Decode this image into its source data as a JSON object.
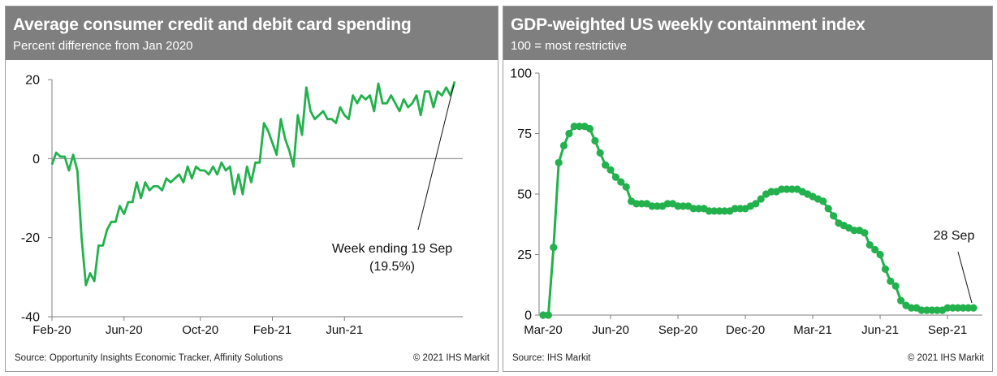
{
  "chart_data": [
    {
      "type": "line",
      "title": "Average consumer credit and debit card spending",
      "subtitle": "Percent difference from Jan 2020",
      "xlabel": "",
      "ylabel": "",
      "ylim": [
        -40,
        20
      ],
      "y_ticks": [
        "20",
        "0",
        "-20",
        "-40"
      ],
      "x_tick_labels": [
        "Feb-20",
        "Jun-20",
        "Oct-20",
        "Feb-21",
        "Jun-21"
      ],
      "x_tick_index": [
        0,
        17,
        35,
        52,
        69
      ],
      "grid": false,
      "series": [
        {
          "name": "Card spending",
          "color": "#22b14c",
          "values": [
            -1.5,
            1.5,
            0.5,
            0.5,
            -3,
            1,
            -3,
            -20,
            -32,
            -29,
            -31,
            -22,
            -22,
            -18,
            -16,
            -16,
            -12,
            -14,
            -11,
            -11,
            -6,
            -10,
            -6,
            -8,
            -7,
            -7,
            -8,
            -5,
            -6,
            -5,
            -4,
            -6,
            -2,
            -5,
            -2,
            -3,
            -3,
            -4,
            -2,
            -4,
            -1,
            -3,
            -2,
            -9,
            -4,
            -9,
            -2,
            -6,
            -1,
            -1,
            9,
            7,
            4,
            1,
            10,
            5,
            2,
            -2,
            11,
            6,
            18,
            12,
            10,
            11,
            12,
            10,
            10,
            9,
            13,
            11,
            10,
            16,
            14,
            16,
            15,
            16,
            12,
            19,
            14,
            14,
            16,
            14,
            12,
            15,
            13,
            14,
            16,
            11,
            17,
            17,
            13,
            17,
            16,
            18,
            16,
            19.5
          ]
        }
      ],
      "annotation": {
        "line1": "Week ending 19 Sep",
        "line2": "(19.5%)"
      },
      "source": "Source: Opportunity Insights Economic Tracker, Affinity Solutions",
      "copyright": "© 2021 IHS Markit"
    },
    {
      "type": "line",
      "title": "GDP-weighted US weekly containment index",
      "subtitle": "100 = most restrictive",
      "xlabel": "",
      "ylabel": "",
      "ylim": [
        0,
        100
      ],
      "y_ticks": [
        "100",
        "75",
        "50",
        "25",
        "0"
      ],
      "x_tick_labels": [
        "Mar-20",
        "Jun-20",
        "Sep-20",
        "Dec-20",
        "Mar-21",
        "Jun-21",
        "Sep-21"
      ],
      "x_tick_index": [
        0,
        13,
        26,
        39,
        52,
        65,
        78
      ],
      "grid": false,
      "series": [
        {
          "name": "Containment index",
          "color": "#22b14c",
          "values": [
            0,
            0,
            28,
            63,
            70,
            75,
            78,
            78,
            78,
            77,
            72,
            67,
            62,
            60,
            57,
            55,
            53,
            47,
            46,
            46,
            46,
            45,
            45,
            45,
            46,
            46,
            45,
            45,
            45,
            44,
            44,
            44,
            43,
            43,
            43,
            43,
            43,
            44,
            44,
            44,
            45,
            46,
            48,
            50,
            51,
            51,
            52,
            52,
            52,
            52,
            51,
            50,
            49,
            48,
            47,
            44,
            41,
            38,
            37,
            36,
            35,
            35,
            34,
            29,
            27,
            25,
            19,
            14,
            12,
            6,
            4,
            3,
            3,
            2,
            2,
            2,
            2,
            2,
            3,
            3,
            3,
            3,
            3,
            3
          ]
        }
      ],
      "annotation": {
        "line1": "28 Sep",
        "line2": ""
      },
      "source": "Source: IHS Markit",
      "copyright": "© 2021 IHS Markit"
    }
  ]
}
